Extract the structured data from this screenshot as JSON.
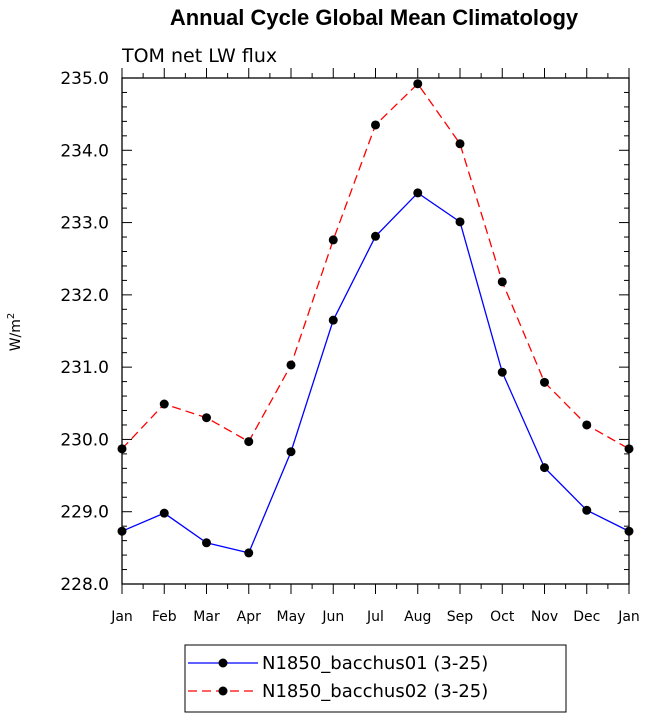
{
  "chart_data": {
    "type": "line",
    "title": "Annual Cycle Global Mean Climatology",
    "subtitle": "TOM net LW flux",
    "ylabel_base": "W/m",
    "ylabel_sup": "2",
    "xlabel": "",
    "categories": [
      "Jan",
      "Feb",
      "Mar",
      "Apr",
      "May",
      "Jun",
      "Jul",
      "Aug",
      "Sep",
      "Oct",
      "Nov",
      "Dec",
      "Jan"
    ],
    "ylim": [
      228.0,
      235.0
    ],
    "yticks": [
      "228.0",
      "229.0",
      "230.0",
      "231.0",
      "232.0",
      "233.0",
      "234.0",
      "235.0"
    ],
    "grid": false,
    "legend_position": "bottom",
    "series": [
      {
        "name": "N1850_bacchus01 (3-25)",
        "color": "#0000ff",
        "dash": "solid",
        "marker": "circle",
        "values": [
          228.73,
          228.98,
          228.57,
          228.43,
          229.83,
          231.65,
          232.81,
          233.41,
          233.01,
          230.93,
          229.61,
          229.02,
          228.73
        ]
      },
      {
        "name": "N1850_bacchus02 (3-25)",
        "color": "#ff0000",
        "dash": "dashed",
        "marker": "circle",
        "values": [
          229.87,
          230.49,
          230.3,
          229.97,
          231.03,
          232.76,
          234.35,
          234.92,
          234.09,
          232.18,
          230.79,
          230.2,
          229.87
        ]
      }
    ]
  }
}
